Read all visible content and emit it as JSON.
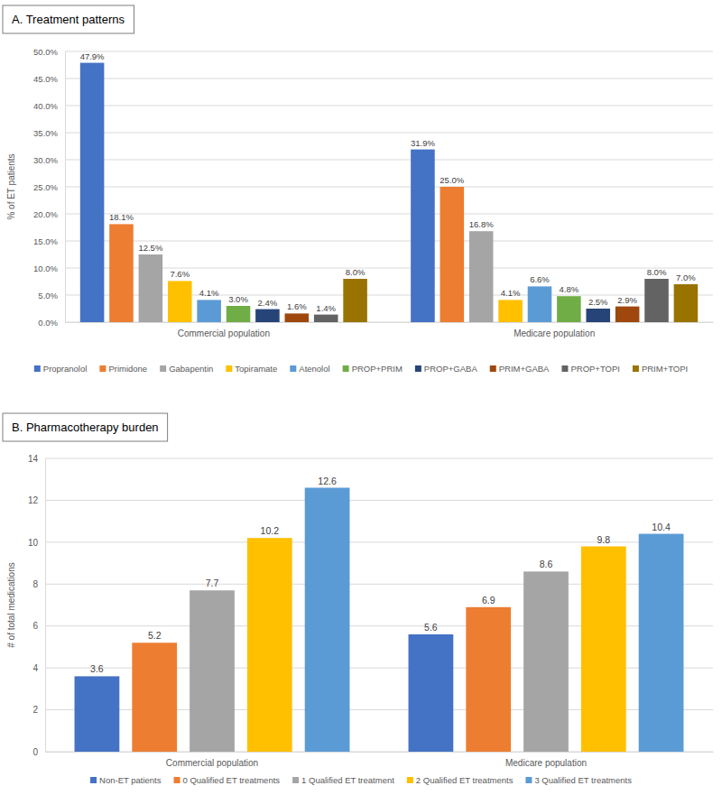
{
  "chart_data": [
    {
      "type": "bar",
      "title": "A. Treatment patterns",
      "y_label": "% of ET patients",
      "categories": [
        "Commercial population",
        "Medicare population"
      ],
      "series": [
        {
          "name": "Propranolol",
          "color": "#4472c4",
          "values": [
            47.9,
            31.9
          ],
          "value_labels": [
            "47.9%",
            "31.9%"
          ]
        },
        {
          "name": "Primidone",
          "color": "#ed7d31",
          "values": [
            18.1,
            25.0
          ],
          "value_labels": [
            "18.1%",
            "25.0%"
          ]
        },
        {
          "name": "Gabapentin",
          "color": "#a5a5a5",
          "values": [
            12.5,
            16.8
          ],
          "value_labels": [
            "12.5%",
            "16.8%"
          ]
        },
        {
          "name": "Topiramate",
          "color": "#ffc000",
          "values": [
            7.6,
            4.1
          ],
          "value_labels": [
            "7.6%",
            "4.1%"
          ]
        },
        {
          "name": "Atenolol",
          "color": "#5b9bd5",
          "values": [
            4.1,
            6.6
          ],
          "value_labels": [
            "4.1%",
            "6.6%"
          ]
        },
        {
          "name": "PROP+PRIM",
          "color": "#70ad47",
          "values": [
            3.0,
            4.8
          ],
          "value_labels": [
            "3.0%",
            "4.8%"
          ]
        },
        {
          "name": "PROP+GABA",
          "color": "#264478",
          "values": [
            2.4,
            2.5
          ],
          "value_labels": [
            "2.4%",
            "2.5%"
          ]
        },
        {
          "name": "PRIM+GABA",
          "color": "#9e480e",
          "values": [
            1.6,
            2.9
          ],
          "value_labels": [
            "1.6%",
            "2.9%"
          ]
        },
        {
          "name": "PROP+TOPI",
          "color": "#636363",
          "values": [
            1.4,
            8.0
          ],
          "value_labels": [
            "1.4%",
            "8.0%"
          ]
        },
        {
          "name": "PRIM+TOPI",
          "color": "#997300",
          "values": [
            8.0,
            7.0
          ],
          "value_labels": [
            "8.0%",
            "7.0%"
          ]
        }
      ],
      "ylim": [
        0,
        50
      ],
      "yticks": [
        {
          "value": 0,
          "label": "0.0%"
        },
        {
          "value": 5,
          "label": "5.0%"
        },
        {
          "value": 10,
          "label": "10.0%"
        },
        {
          "value": 15,
          "label": "15.0%"
        },
        {
          "value": 20,
          "label": "20.0%"
        },
        {
          "value": 25,
          "label": "25.0%"
        },
        {
          "value": 30,
          "label": "30.0%"
        },
        {
          "value": 35,
          "label": "35.0%"
        },
        {
          "value": 40,
          "label": "40.0%"
        },
        {
          "value": 45,
          "label": "45.0%"
        },
        {
          "value": 50,
          "label": "50.0%"
        }
      ],
      "grid": true,
      "legend": "bottom",
      "data_labels": true
    },
    {
      "type": "bar",
      "title": "B. Pharmacotherapy burden",
      "y_label": "# of total medications",
      "categories": [
        "Commercial population",
        "Medicare population"
      ],
      "series": [
        {
          "name": "Non-ET patients",
          "color": "#4472c4",
          "values": [
            3.6,
            5.6
          ]
        },
        {
          "name": "0 Qualified ET treatments",
          "color": "#ed7d31",
          "values": [
            5.2,
            6.9
          ]
        },
        {
          "name": "1 Qualified ET treatment",
          "color": "#a5a5a5",
          "values": [
            7.7,
            8.6
          ]
        },
        {
          "name": "2 Qualified ET treatments",
          "color": "#ffc000",
          "values": [
            10.2,
            9.8
          ]
        },
        {
          "name": "3 Qualified ET treatments",
          "color": "#5b9bd5",
          "values": [
            12.6,
            10.4
          ]
        }
      ],
      "ylim": [
        0,
        14
      ],
      "yticks": [
        0,
        2,
        4,
        6,
        8,
        10,
        12,
        14
      ],
      "grid": true,
      "legend": "bottom",
      "data_labels": true
    }
  ]
}
